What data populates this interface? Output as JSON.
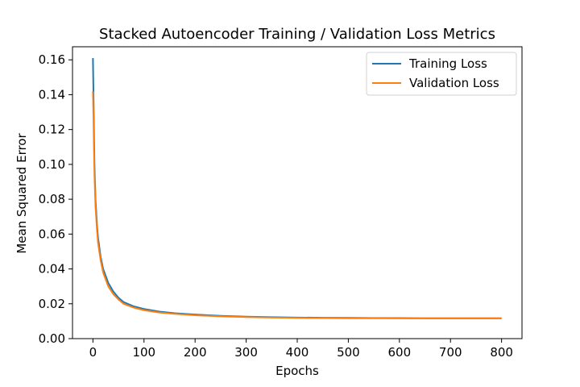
{
  "chart_data": {
    "type": "line",
    "title": "Stacked Autoencoder Training / Validation Loss Metrics",
    "xlabel": "Epochs",
    "ylabel": "Mean Squared Error",
    "xlim": [
      -40,
      840
    ],
    "ylim": [
      0.0,
      0.1675
    ],
    "xticks": [
      0,
      100,
      200,
      300,
      400,
      500,
      600,
      700,
      800
    ],
    "yticks": [
      0.0,
      0.02,
      0.04,
      0.06,
      0.08,
      0.1,
      0.12,
      0.14,
      0.16
    ],
    "ytick_format_decimals": 2,
    "grid": false,
    "legend_position": "top-right",
    "series": [
      {
        "name": "Training Loss",
        "color": "#1f77b4",
        "x": [
          0,
          1,
          2,
          3,
          5,
          8,
          10,
          15,
          20,
          30,
          40,
          50,
          60,
          80,
          100,
          130,
          160,
          200,
          250,
          300,
          350,
          400,
          450,
          500,
          550,
          600,
          650,
          700,
          750,
          800
        ],
        "y": [
          0.161,
          0.142,
          0.12,
          0.1,
          0.08,
          0.065,
          0.058,
          0.047,
          0.04,
          0.032,
          0.027,
          0.0235,
          0.021,
          0.0185,
          0.017,
          0.0155,
          0.0146,
          0.0138,
          0.0131,
          0.0126,
          0.0123,
          0.0121,
          0.012,
          0.0119,
          0.0118,
          0.0118,
          0.0117,
          0.0117,
          0.0117,
          0.0117
        ]
      },
      {
        "name": "Validation Loss",
        "color": "#ff7f0e",
        "x": [
          0,
          1,
          2,
          3,
          5,
          8,
          10,
          15,
          20,
          30,
          40,
          50,
          60,
          80,
          100,
          130,
          160,
          200,
          250,
          300,
          350,
          400,
          450,
          500,
          550,
          600,
          650,
          700,
          750,
          800
        ],
        "y": [
          0.142,
          0.128,
          0.11,
          0.094,
          0.076,
          0.062,
          0.055,
          0.045,
          0.038,
          0.03,
          0.0255,
          0.0225,
          0.02,
          0.0178,
          0.0163,
          0.015,
          0.0142,
          0.0134,
          0.0128,
          0.0124,
          0.0121,
          0.0119,
          0.0118,
          0.0117,
          0.0117,
          0.0116,
          0.0116,
          0.0116,
          0.0116,
          0.0116
        ]
      }
    ]
  }
}
